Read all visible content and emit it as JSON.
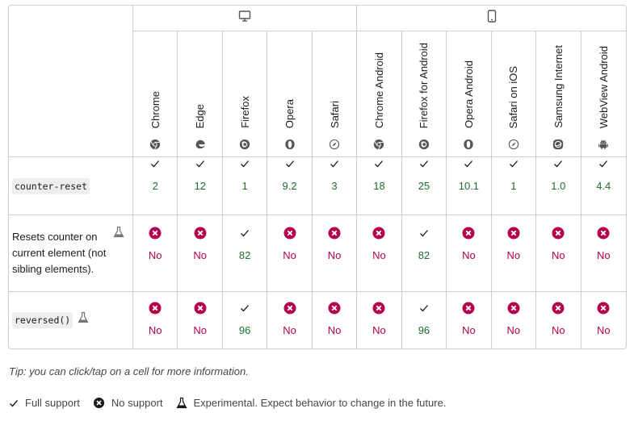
{
  "platforms": {
    "desktop_icon": "desktop-icon",
    "mobile_icon": "mobile-icon"
  },
  "browsers": [
    {
      "name": "Chrome",
      "logo": "chrome-logo-icon"
    },
    {
      "name": "Edge",
      "logo": "edge-logo-icon"
    },
    {
      "name": "Firefox",
      "logo": "firefox-logo-icon"
    },
    {
      "name": "Opera",
      "logo": "opera-logo-icon"
    },
    {
      "name": "Safari",
      "logo": "safari-logo-icon"
    },
    {
      "name": "Chrome Android",
      "logo": "chrome-logo-icon"
    },
    {
      "name": "Firefox for Android",
      "logo": "firefox-logo-icon"
    },
    {
      "name": "Opera Android",
      "logo": "opera-logo-icon"
    },
    {
      "name": "Safari on iOS",
      "logo": "safari-logo-icon"
    },
    {
      "name": "Samsung Internet",
      "logo": "samsung-logo-icon"
    },
    {
      "name": "WebView Android",
      "logo": "android-logo-icon"
    }
  ],
  "features": [
    {
      "label": "counter-reset",
      "is_code": true,
      "experimental": false,
      "support": [
        {
          "supported": true,
          "value": "2"
        },
        {
          "supported": true,
          "value": "12"
        },
        {
          "supported": true,
          "value": "1"
        },
        {
          "supported": true,
          "value": "9.2"
        },
        {
          "supported": true,
          "value": "3"
        },
        {
          "supported": true,
          "value": "18"
        },
        {
          "supported": true,
          "value": "25"
        },
        {
          "supported": true,
          "value": "10.1"
        },
        {
          "supported": true,
          "value": "1"
        },
        {
          "supported": true,
          "value": "1.0"
        },
        {
          "supported": true,
          "value": "4.4"
        }
      ]
    },
    {
      "label": "Resets counter on current element (not sibling elements).",
      "is_code": false,
      "experimental": true,
      "support": [
        {
          "supported": false,
          "value": "No"
        },
        {
          "supported": false,
          "value": "No"
        },
        {
          "supported": true,
          "value": "82"
        },
        {
          "supported": false,
          "value": "No"
        },
        {
          "supported": false,
          "value": "No"
        },
        {
          "supported": false,
          "value": "No"
        },
        {
          "supported": true,
          "value": "82"
        },
        {
          "supported": false,
          "value": "No"
        },
        {
          "supported": false,
          "value": "No"
        },
        {
          "supported": false,
          "value": "No"
        },
        {
          "supported": false,
          "value": "No"
        }
      ]
    },
    {
      "label": "reversed()",
      "is_code": true,
      "experimental": true,
      "support": [
        {
          "supported": false,
          "value": "No"
        },
        {
          "supported": false,
          "value": "No"
        },
        {
          "supported": true,
          "value": "96"
        },
        {
          "supported": false,
          "value": "No"
        },
        {
          "supported": false,
          "value": "No"
        },
        {
          "supported": false,
          "value": "No"
        },
        {
          "supported": true,
          "value": "96"
        },
        {
          "supported": false,
          "value": "No"
        },
        {
          "supported": false,
          "value": "No"
        },
        {
          "supported": false,
          "value": "No"
        },
        {
          "supported": false,
          "value": "No"
        }
      ]
    }
  ],
  "tip": "Tip: you can click/tap on a cell for more information.",
  "legend": {
    "full_support": "Full support",
    "no_support": "No support",
    "experimental": "Experimental. Expect behavior to change in the future."
  },
  "colors": {
    "yes": "#1e6e2d",
    "no": "#b4004e",
    "border": "#cdcdcd"
  }
}
